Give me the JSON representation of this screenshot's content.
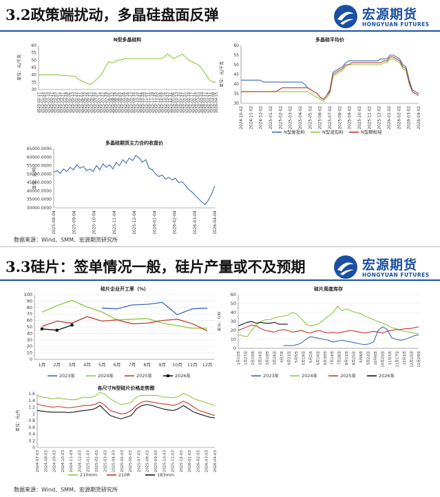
{
  "section1": {
    "title": "3.2政策端扰动，多晶硅盘面反弹",
    "source": "数据来源：Wind、SMM、宏源期货研究所"
  },
  "section2": {
    "title": "3.3硅片：签单情况一般，硅片产量或不及预期",
    "source": "数据来源：Wind、SMM、宏源期货研究所"
  },
  "logo": {
    "cn": "宏源期货",
    "en": "HONGYUAN FUTURES"
  },
  "colors": {
    "brand": "#1a4fa3"
  },
  "chart_data": [
    {
      "id": "n-poly",
      "type": "line",
      "title": "N型多晶硅料",
      "ylabel": "单位：元/千克",
      "ylim": [
        30,
        60
      ],
      "yticks": [
        30,
        35,
        40,
        45,
        50,
        55,
        60
      ],
      "categories": [
        "2025-01-24",
        "2025-02-17",
        "2025-03-03",
        "2025-03-10",
        "2025-03-17",
        "2025-03-24",
        "2025-04-07",
        "2025-04-14",
        "2025-04-21",
        "2025-04-28",
        "2025-05-06",
        "2025-05-13",
        "2025-05-20",
        "2025-05-27",
        "2025-06-03",
        "2025-06-10",
        "2025-06-16",
        "2025-06-23",
        "2025-06-30",
        "2025-07-07",
        "2025-07-14",
        "2025-07-22",
        "2025-07-29",
        "2025-08-05",
        "2025-08-12",
        "2025-08-19",
        "2025-08-26",
        "2025-09-02",
        "2025-09-09",
        "2025-09-16",
        "2025-09-23",
        "2025-09-30",
        "2025-10-14",
        "2025-10-21",
        "2025-10-28",
        "2025-11-04",
        "2025-11-11",
        "2025-11-18",
        "2025-11-25",
        "2025-12-02",
        "2025-12-09",
        "2025-12-16",
        "2025-12-23",
        "2025-12-31",
        "2026-01-06",
        "2026-01-13",
        "2026-01-20",
        "2026-01-27",
        "2026-02-03",
        "2026-02-10",
        "2026-02-17",
        "2026-02-24",
        "2026-03-03",
        "2026-03-10",
        "2026-03-17",
        "2026-03-24",
        "2026-03-31",
        "2026-04-08",
        "2026-04-15"
      ],
      "xticks": [
        "2025-02-17",
        "2025-01-24",
        "2025-03-03",
        "2025-03-10",
        "2025-03-17",
        "2025-03-24",
        "2025-04-07",
        "2025-04-14",
        "2025-04-21",
        "2025-04-28",
        "2025-05-06",
        "2025-05-13",
        "2025-05-20",
        "2025-05-27",
        "2025-06-03",
        "2025-06-10",
        "2025-06-16",
        "2025-06-23",
        "2025-06-30",
        "2025-07-07",
        "2025-07-14",
        "2025-07-22",
        "2025-07-29",
        "2025-08-05",
        "2025-08-12",
        "2025-08-19",
        "2025-08-26",
        "2025-09-02",
        "2025-09-09",
        "2025-09-16",
        "2025-09-23",
        "2025-09-30",
        "2025-10-14",
        "2025-10-21",
        "2025-10-28",
        "2025-11-04",
        "2025-11-11",
        "2025-11-18",
        "2025-11-25",
        "2025-12-02",
        "2025-12-09",
        "2025-12-16",
        "2025-12-23",
        "2025-12-31",
        "2026-01-06",
        "2026-01-13",
        "2026-01-20",
        "2026-01-27",
        "2026-02-03",
        "2026-02-10",
        "2026-02-17",
        "2026-02-24",
        "2026-03-03",
        "2026-03-10",
        "2026-03-17",
        "2026-03-24",
        "2026-03-31",
        "2026-04-08",
        "2026-04-15"
      ],
      "series": [
        {
          "color": "#8dc63f",
          "values": [
            40,
            40,
            40,
            40,
            40,
            40,
            40,
            39.8,
            39.6,
            39.5,
            39.3,
            39,
            39,
            37,
            36,
            35,
            34,
            33.5,
            35,
            37,
            39,
            42,
            46,
            49,
            48,
            49,
            50,
            50,
            51,
            51,
            51,
            51,
            51,
            51,
            51,
            51,
            51,
            51,
            51,
            51,
            51,
            52,
            54,
            53,
            51,
            52,
            53,
            54,
            52,
            50,
            49,
            48,
            47,
            45,
            42,
            39,
            36,
            35,
            35
          ]
        }
      ]
    },
    {
      "id": "poly-avg",
      "type": "line",
      "title": "多晶硅平均价",
      "ylabel": "单位：元/千克",
      "ylim": [
        30,
        60
      ],
      "yticks": [
        30,
        35,
        40,
        45,
        50,
        55,
        60
      ],
      "xticks": [
        "2024-10-02",
        "2024-11-02",
        "2024-12-02",
        "2025-01-02",
        "2025-02-02",
        "2025-03-02",
        "2025-04-02",
        "2025-05-02",
        "2025-06-02",
        "2025-07-02",
        "2025-08-02",
        "2025-09-02",
        "2025-10-02",
        "2025-11-02",
        "2025-12-02",
        "2026-01-02",
        "2026-02-02",
        "2026-03-02",
        "2026-04-02"
      ],
      "series": [
        {
          "name": "N型复投料",
          "color": "#3b6bb5",
          "values": [
            42,
            42,
            42,
            42,
            42,
            42,
            42,
            41,
            41,
            41,
            41,
            41,
            41,
            41,
            41,
            41,
            41,
            41,
            41,
            41,
            40,
            38,
            37,
            36,
            35,
            33,
            32,
            34,
            37,
            46,
            47,
            48,
            49,
            51,
            52,
            52,
            52,
            52,
            52,
            52,
            52,
            52,
            52,
            52,
            53,
            53,
            53,
            55,
            55,
            54,
            53,
            50,
            49,
            42,
            37,
            36,
            35
          ]
        },
        {
          "name": "N型混包料",
          "color": "#8dc63f",
          "values": [
            36,
            36,
            36,
            36,
            36,
            36,
            36,
            36,
            36,
            36,
            36,
            36,
            36,
            36,
            36,
            36,
            36,
            36,
            36,
            36,
            36,
            36,
            35,
            34,
            33,
            32,
            31,
            33,
            35,
            44,
            45,
            46,
            47,
            49,
            50,
            50,
            50,
            50,
            50,
            50,
            50,
            50,
            50,
            50,
            50,
            51,
            51,
            53,
            53,
            52,
            51,
            48,
            47,
            40,
            36,
            35,
            34
          ]
        },
        {
          "name": "N型颗粒硅",
          "color": "#c0392b",
          "values": [
            36,
            36,
            36,
            36,
            36,
            36,
            36,
            36,
            36,
            36,
            36,
            36,
            37,
            38,
            38,
            38,
            38,
            38,
            38,
            38,
            38,
            38,
            37,
            36,
            35,
            33,
            32,
            34,
            36,
            45,
            46,
            47,
            48,
            50,
            50,
            51,
            51,
            51,
            51,
            51,
            51,
            51,
            51,
            51,
            51,
            52,
            52,
            54,
            54,
            53,
            52,
            49,
            48,
            41,
            36,
            35,
            34
          ]
        }
      ]
    },
    {
      "id": "poly-futures",
      "type": "line",
      "title": "多晶硅期货主力合约收盘价",
      "ylabel": "单位：元/吨",
      "ylim": [
        30000,
        65000
      ],
      "yticks": [
        "30000.0000",
        "35000.0000",
        "40000.0000",
        "45000.0000",
        "50000.0000",
        "55000.0000",
        "60000.0000",
        "65000.0000"
      ],
      "xticks": [
        "2025-08-04",
        "2025-09-04",
        "2025-10-04",
        "2025-11-04",
        "2025-12-04",
        "2026-01-04",
        "2026-02-04",
        "2026-03-04",
        "2026-04-04"
      ],
      "series": [
        {
          "color": "#3b6bb5",
          "values": [
            51000,
            52000,
            50500,
            53000,
            51500,
            54000,
            52500,
            55500,
            53500,
            54500,
            52000,
            53000,
            51500,
            55000,
            52500,
            56000,
            54000,
            55500,
            53000,
            57000,
            55000,
            58500,
            56500,
            59500,
            58000,
            61000,
            59500,
            57000,
            58500,
            53500,
            52500,
            50000,
            48500,
            49500,
            47000,
            48000,
            46500,
            47500,
            45000,
            45500,
            43500,
            41000,
            39500,
            37500,
            35500,
            33500,
            32000,
            34500,
            38000,
            43000
          ]
        }
      ]
    },
    {
      "id": "wafer-rate",
      "type": "line",
      "title": "硅片企业开工率（%）",
      "ylim": [
        0,
        100
      ],
      "yticks": [
        0,
        10,
        20,
        30,
        40,
        50,
        60,
        70,
        80,
        90,
        100
      ],
      "categories": [
        "1月",
        "2月",
        "3月",
        "4月",
        "5月",
        "6月",
        "7月",
        "8月",
        "9月",
        "10月",
        "11月",
        "12月"
      ],
      "series": [
        {
          "name": "2023年",
          "color": "#3b6bb5",
          "values": [
            null,
            null,
            null,
            null,
            79,
            78,
            84,
            85,
            88,
            69,
            78,
            79
          ]
        },
        {
          "name": "2024年",
          "color": "#8dc63f",
          "values": [
            73,
            83,
            91,
            81,
            73,
            61,
            62,
            63,
            56,
            52,
            48,
            48
          ]
        },
        {
          "name": "2025年",
          "color": "#c0392b",
          "values": [
            51,
            59,
            56,
            66,
            59,
            61,
            55,
            56,
            60,
            62,
            55,
            44
          ]
        },
        {
          "name": "2026年",
          "color": "#111111",
          "values": [
            47,
            45,
            53,
            null,
            null,
            null,
            null,
            null,
            null,
            null,
            null,
            null
          ]
        }
      ]
    },
    {
      "id": "wafer-stock",
      "type": "line",
      "title": "硅片周度库存",
      "ylabel": "单位：GW",
      "ylim": [
        0,
        60
      ],
      "yticks": [
        0,
        10,
        20,
        30,
        40,
        50,
        60
      ],
      "xticks": [
        "1月13日",
        "1月27日",
        "2月10日",
        "2月24日",
        "3月10日",
        "3月24日",
        "4月7日",
        "4月21日",
        "5月5日",
        "5月19日",
        "6月2日",
        "6月16日",
        "6月30日",
        "7月14日",
        "7月28日",
        "8月11日",
        "8月25日",
        "9月8日",
        "9月22日",
        "10月6日",
        "10月20日",
        "11月3日",
        "11月17日",
        "12月1日",
        "12月15日",
        "12月29日"
      ],
      "series": [
        {
          "name": "2023年",
          "color": "#3b6bb5",
          "values": [
            null,
            null,
            null,
            null,
            null,
            null,
            null,
            null,
            null,
            null,
            3,
            3,
            3,
            4,
            6,
            10,
            13,
            12,
            11,
            10,
            9,
            7,
            8,
            9,
            8,
            7,
            6,
            5,
            4,
            5,
            7,
            20,
            24,
            21,
            12,
            10,
            9,
            10,
            12,
            14,
            15
          ]
        },
        {
          "name": "2024年",
          "color": "#8dc63f",
          "values": [
            15,
            14,
            13,
            20,
            26,
            30,
            32,
            32,
            34,
            35,
            36,
            37,
            40,
            38,
            33,
            27,
            25,
            26,
            28,
            32,
            36,
            40,
            47,
            42,
            44,
            42,
            40,
            39,
            36,
            34,
            32,
            30,
            28,
            26,
            23,
            22,
            20,
            19,
            18,
            17,
            16
          ]
        },
        {
          "name": "2025年",
          "color": "#c0392b",
          "values": [
            20,
            22,
            24,
            26,
            25,
            22,
            20,
            19,
            18,
            20,
            21,
            20,
            18,
            19,
            20,
            18,
            17,
            19,
            20,
            18,
            17,
            18,
            17,
            18,
            19,
            20,
            19,
            18,
            17,
            18,
            19,
            18,
            17,
            19,
            20,
            21,
            21,
            22,
            22,
            23,
            24
          ]
        },
        {
          "name": "2026年",
          "color": "#111111",
          "values": [
            25,
            27,
            29,
            30,
            28,
            29,
            28,
            28,
            29,
            27,
            27,
            27,
            null,
            null,
            null,
            null,
            null,
            null,
            null,
            null,
            null,
            null,
            null,
            null,
            null,
            null,
            null,
            null,
            null,
            null,
            null,
            null,
            null,
            null,
            null,
            null,
            null,
            null,
            null,
            null,
            null
          ]
        }
      ]
    },
    {
      "id": "wafer-price",
      "type": "line",
      "title": "各尺寸N型硅片价格走势图",
      "ylabel": "单位：元/片",
      "ylim": [
        0,
        1.6
      ],
      "yticks": [
        "0",
        "0.2",
        "0.4",
        "0.6",
        "0.8",
        "1",
        "1.2",
        "1.4",
        "1.6"
      ],
      "xticks": [
        "2024-07-03",
        "2024-08-03",
        "2024-09-03",
        "2024-10-03",
        "2024-11-03",
        "2024-12-03",
        "2025-01-03",
        "2025-02-03",
        "2025-03-03",
        "2025-04-03",
        "2025-05-03",
        "2025-06-03",
        "2025-07-03",
        "2025-08-03",
        "2025-09-03",
        "2025-10-03",
        "2025-11-03",
        "2025-12-03",
        "2026-01-03",
        "2026-02-03",
        "2026-03-03",
        "2026-04-03"
      ],
      "series": [
        {
          "name": "210mm",
          "color": "#8dc63f",
          "values": [
            1.55,
            1.5,
            1.48,
            1.45,
            1.48,
            1.45,
            1.43,
            1.42,
            1.45,
            1.5,
            1.48,
            1.52,
            1.65,
            1.58,
            1.45,
            1.35,
            1.28,
            1.3,
            1.35,
            1.5,
            1.55,
            1.55,
            1.55,
            1.55,
            1.5,
            1.5,
            1.48,
            1.52,
            1.6,
            1.55,
            1.45,
            1.4,
            1.35,
            1.3,
            1.25
          ]
        },
        {
          "name": "210R",
          "color": "#c0392b",
          "values": [
            1.3,
            1.25,
            1.22,
            1.2,
            1.22,
            1.2,
            1.18,
            1.2,
            1.22,
            1.25,
            1.25,
            1.28,
            1.35,
            1.25,
            1.1,
            1.05,
            1.0,
            1.02,
            1.1,
            1.25,
            1.35,
            1.38,
            1.35,
            1.32,
            1.3,
            1.28,
            1.25,
            1.3,
            1.38,
            1.3,
            1.2,
            1.1,
            1.05,
            1.0,
            0.95
          ]
        },
        {
          "name": "183mm",
          "color": "#111111",
          "values": [
            1.1,
            1.08,
            1.06,
            1.05,
            1.05,
            1.05,
            1.04,
            1.05,
            1.08,
            1.1,
            1.12,
            1.15,
            1.25,
            1.1,
            0.95,
            0.9,
            0.85,
            0.9,
            0.95,
            1.15,
            1.25,
            1.28,
            1.25,
            1.2,
            1.15,
            1.12,
            1.1,
            1.15,
            1.25,
            1.15,
            1.05,
            1.0,
            0.95,
            0.9,
            0.88
          ]
        }
      ]
    }
  ]
}
